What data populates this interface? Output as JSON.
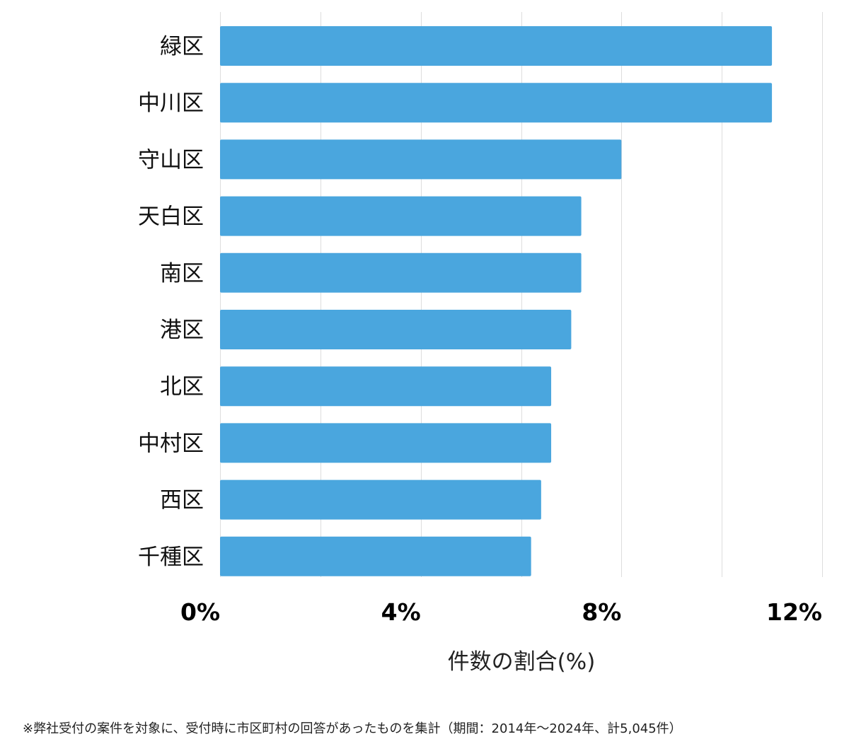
{
  "chart_data": {
    "type": "bar",
    "orientation": "horizontal",
    "categories": [
      "緑区",
      "中川区",
      "守山区",
      "天白区",
      "南区",
      "港区",
      "北区",
      "中村区",
      "西区",
      "千種区"
    ],
    "values": [
      11.0,
      11.0,
      8.0,
      7.2,
      7.2,
      7.0,
      6.6,
      6.6,
      6.4,
      6.2
    ],
    "xlim": [
      0,
      12
    ],
    "xticks": [
      "0%",
      "4%",
      "8%",
      "12%"
    ],
    "xtick_values": [
      0,
      4,
      8,
      12
    ],
    "xlabel": "件数の割合(%)",
    "grid": true,
    "bar_color": "#4aa6de",
    "grid_color": "#dddddd"
  },
  "footnote": "※弊社受付の案件を対象に、受付時に市区町村の回答があったものを集計（期間：2014年～2024年、計5,045件）"
}
